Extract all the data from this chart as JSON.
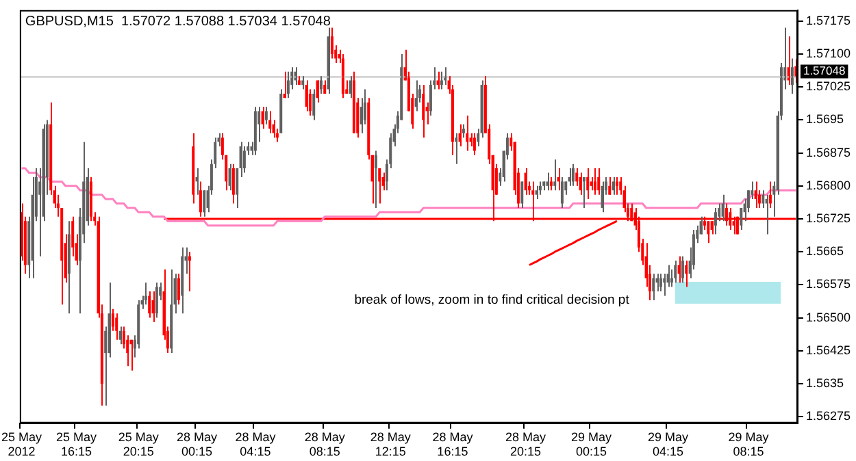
{
  "chart_data": {
    "type": "candlestick",
    "title": "GBPUSD,M15  1.57072 1.57088 1.57034 1.57048",
    "annotations": [
      "break of lows, zoom in to find critical decision pt"
    ],
    "categories": [
      "25 May 2012",
      null,
      null,
      null,
      null,
      null,
      null,
      null,
      null,
      null,
      null,
      null,
      null,
      null,
      null,
      "25 May 16:15",
      null,
      null,
      null,
      null,
      null,
      null,
      null,
      null,
      null,
      null,
      null,
      null,
      null,
      null,
      null,
      null,
      "25 May 20:15",
      null,
      null,
      null,
      null,
      null,
      null,
      null,
      null,
      null,
      null,
      null,
      null,
      null,
      null,
      null,
      "28 May 00:15",
      null,
      null,
      null,
      null,
      null,
      null,
      null,
      null,
      null,
      null,
      null,
      null,
      null,
      null,
      null,
      "28 May 04:15",
      null,
      null,
      null,
      null,
      null,
      null,
      null,
      null,
      null,
      null,
      null,
      null,
      null,
      null,
      null,
      null,
      null,
      null,
      "28 May 08:15",
      null,
      null,
      null,
      null,
      null,
      null,
      null,
      null,
      null,
      null,
      null,
      null,
      null,
      null,
      null,
      null,
      null,
      "28 May 12:15",
      null,
      null,
      null,
      null,
      null,
      null,
      null,
      null,
      null,
      null,
      null,
      null,
      null,
      null,
      null,
      null,
      "28 May 16:15",
      null,
      null,
      null,
      null,
      null,
      null,
      null,
      null,
      null,
      null,
      null,
      null,
      null,
      null,
      null,
      null,
      null,
      null,
      null,
      "28 May 20:15",
      null,
      null,
      null,
      null,
      null,
      null,
      null,
      null,
      null,
      null,
      null,
      null,
      null,
      null,
      null,
      null,
      null,
      "29 May 00:15",
      null,
      null,
      null,
      null,
      null,
      null,
      null,
      null,
      null,
      null,
      null,
      null,
      null,
      null,
      null,
      null,
      null,
      null,
      null,
      null,
      "29 May 04:15",
      null,
      null,
      null,
      null,
      null,
      null,
      null,
      null,
      null,
      null,
      null,
      null,
      null,
      null,
      null,
      null,
      null,
      null,
      null,
      null,
      null,
      "29 May 08:15",
      null,
      null,
      null,
      null,
      null,
      null,
      null,
      null,
      null,
      null,
      null,
      null,
      null
    ],
    "ohlc": [
      [
        1.5674,
        1.5676,
        1.5663,
        1.5664
      ],
      [
        1.5672,
        1.5673,
        1.566,
        1.5662
      ],
      [
        1.5662,
        1.5673,
        1.5659,
        1.5672
      ],
      [
        1.5663,
        1.5682,
        1.5659,
        1.5678
      ],
      [
        1.5673,
        1.5684,
        1.5672,
        1.5682
      ],
      [
        1.5678,
        1.5684,
        1.5664,
        1.5681
      ],
      [
        1.5673,
        1.5694,
        1.5672,
        1.5693
      ],
      [
        1.5682,
        1.5695,
        1.5678,
        1.5694
      ],
      [
        1.5694,
        1.5699,
        1.5678,
        1.5679
      ],
      [
        1.5679,
        1.568,
        1.5675,
        1.5676
      ],
      [
        1.5676,
        1.5678,
        1.5673,
        1.5675
      ],
      [
        1.5675,
        1.5675,
        1.5653,
        1.5663
      ],
      [
        1.5667,
        1.5669,
        1.5658,
        1.5659
      ],
      [
        1.566,
        1.5672,
        1.5651,
        1.5669
      ],
      [
        1.5672,
        1.5673,
        1.5664,
        1.5666
      ],
      [
        1.5667,
        1.5669,
        1.5662,
        1.5663
      ],
      [
        1.5663,
        1.5675,
        1.5651,
        1.5673
      ],
      [
        1.5669,
        1.569,
        1.5667,
        1.5681
      ],
      [
        1.5672,
        1.5684,
        1.5671,
        1.5682
      ],
      [
        1.5681,
        1.5682,
        1.5672,
        1.5673
      ],
      [
        1.5673,
        1.5674,
        1.5671,
        1.5672
      ],
      [
        1.5672,
        1.5673,
        1.565,
        1.5651
      ],
      [
        1.5651,
        1.5653,
        1.563,
        1.5635
      ],
      [
        1.5642,
        1.5648,
        1.563,
        1.5647
      ],
      [
        1.5642,
        1.5658,
        1.5641,
        1.5651
      ],
      [
        1.5651,
        1.5652,
        1.5647,
        1.5648
      ],
      [
        1.565,
        1.5651,
        1.5645,
        1.5647
      ],
      [
        1.5645,
        1.5648,
        1.5644,
        1.5647
      ],
      [
        1.5647,
        1.5648,
        1.5643,
        1.5644
      ],
      [
        1.5645,
        1.5646,
        1.5639,
        1.5642
      ],
      [
        1.5645,
        1.5645,
        1.5638,
        1.5644
      ],
      [
        1.5643,
        1.5646,
        1.5641,
        1.5645
      ],
      [
        1.5644,
        1.5654,
        1.5643,
        1.5653
      ],
      [
        1.5653,
        1.5655,
        1.5652,
        1.5654
      ],
      [
        1.5654,
        1.5658,
        1.5653,
        1.5655
      ],
      [
        1.5655,
        1.5656,
        1.565,
        1.5651
      ],
      [
        1.5654,
        1.5656,
        1.5649,
        1.5651
      ],
      [
        1.5651,
        1.5658,
        1.565,
        1.5657
      ],
      [
        1.5655,
        1.5658,
        1.5654,
        1.5657
      ],
      [
        1.5656,
        1.5661,
        1.5645,
        1.5646
      ],
      [
        1.5647,
        1.5648,
        1.5642,
        1.5643
      ],
      [
        1.5643,
        1.5661,
        1.5642,
        1.5653
      ],
      [
        1.5653,
        1.566,
        1.5651,
        1.5659
      ],
      [
        1.5659,
        1.566,
        1.5653,
        1.5654
      ],
      [
        1.5655,
        1.5666,
        1.5651,
        1.5664
      ],
      [
        1.5663,
        1.5666,
        1.566,
        1.5664
      ],
      [
        1.5664,
        1.5665,
        1.5656,
        1.5663
      ],
      [
        1.5689,
        1.5692,
        1.5676,
        1.5678
      ],
      [
        1.5681,
        1.5684,
        1.5678,
        1.5682
      ],
      [
        1.5679,
        1.5681,
        1.5673,
        1.5674
      ],
      [
        1.5674,
        1.5679,
        1.5673,
        1.5679
      ],
      [
        1.5675,
        1.568,
        1.5674,
        1.5679
      ],
      [
        1.5679,
        1.5686,
        1.5678,
        1.5685
      ],
      [
        1.5685,
        1.5691,
        1.5684,
        1.569
      ],
      [
        1.569,
        1.5692,
        1.5689,
        1.5691
      ],
      [
        1.5691,
        1.5692,
        1.5686,
        1.5687
      ],
      [
        1.5687,
        1.5687,
        1.5679,
        1.5681
      ],
      [
        1.568,
        1.5685,
        1.5679,
        1.5684
      ],
      [
        1.5684,
        1.5685,
        1.5676,
        1.5678
      ],
      [
        1.5678,
        1.5684,
        1.5675,
        1.5684
      ],
      [
        1.5684,
        1.569,
        1.5682,
        1.5689
      ],
      [
        1.5684,
        1.5689,
        1.5683,
        1.5688
      ],
      [
        1.5688,
        1.569,
        1.5687,
        1.5689
      ],
      [
        1.5688,
        1.569,
        1.5687,
        1.5689
      ],
      [
        1.5688,
        1.5698,
        1.5687,
        1.5697
      ],
      [
        1.5694,
        1.5698,
        1.569,
        1.5697
      ],
      [
        1.5697,
        1.5698,
        1.5693,
        1.5694
      ],
      [
        1.5695,
        1.5698,
        1.5694,
        1.5697
      ],
      [
        1.5695,
        1.5697,
        1.5692,
        1.5693
      ],
      [
        1.5694,
        1.5695,
        1.5691,
        1.5692
      ],
      [
        1.5692,
        1.5693,
        1.569,
        1.5691
      ],
      [
        1.5692,
        1.5702,
        1.5692,
        1.5701
      ],
      [
        1.5701,
        1.5706,
        1.57,
        1.57
      ],
      [
        1.5701,
        1.5706,
        1.57,
        1.5704
      ],
      [
        1.5703,
        1.5707,
        1.5702,
        1.5706
      ],
      [
        1.5704,
        1.5707,
        1.5703,
        1.5706
      ],
      [
        1.5704,
        1.5705,
        1.5703,
        1.5703
      ],
      [
        1.5703,
        1.5705,
        1.5702,
        1.5704
      ],
      [
        1.5703,
        1.5704,
        1.5697,
        1.5698
      ],
      [
        1.5701,
        1.5702,
        1.5696,
        1.5697
      ],
      [
        1.5696,
        1.5702,
        1.5695,
        1.5701
      ],
      [
        1.5704,
        1.5704,
        1.5699,
        1.57
      ],
      [
        1.5702,
        1.5705,
        1.5701,
        1.5704
      ],
      [
        1.5703,
        1.5704,
        1.5701,
        1.5701
      ],
      [
        1.5702,
        1.5716,
        1.5701,
        1.5714
      ],
      [
        1.5714,
        1.5716,
        1.5709,
        1.571
      ],
      [
        1.5711,
        1.5712,
        1.5708,
        1.5709
      ],
      [
        1.571,
        1.5711,
        1.5708,
        1.5709
      ],
      [
        1.5709,
        1.571,
        1.57,
        1.5701
      ],
      [
        1.5702,
        1.5704,
        1.5701,
        1.5701
      ],
      [
        1.5701,
        1.5705,
        1.57,
        1.5704
      ],
      [
        1.5704,
        1.5706,
        1.5692,
        1.5692
      ],
      [
        1.5699,
        1.57,
        1.5691,
        1.5692
      ],
      [
        1.5694,
        1.57,
        1.5692,
        1.5698
      ],
      [
        1.5695,
        1.5702,
        1.5694,
        1.5699
      ],
      [
        1.5699,
        1.57,
        1.5686,
        1.5687
      ],
      [
        1.5687,
        1.5687,
        1.5676,
        1.5681
      ],
      [
        1.5684,
        1.5688,
        1.5675,
        1.5687
      ],
      [
        1.5684,
        1.5684,
        1.5676,
        1.5681
      ],
      [
        1.5682,
        1.5683,
        1.5679,
        1.568
      ],
      [
        1.5681,
        1.5686,
        1.5679,
        1.5685
      ],
      [
        1.5685,
        1.5692,
        1.5684,
        1.5691
      ],
      [
        1.569,
        1.5694,
        1.5689,
        1.5693
      ],
      [
        1.5693,
        1.5697,
        1.5692,
        1.5696
      ],
      [
        1.5695,
        1.571,
        1.5695,
        1.5707
      ],
      [
        1.5707,
        1.5711,
        1.5704,
        1.5704
      ],
      [
        1.5705,
        1.5706,
        1.5697,
        1.5697
      ],
      [
        1.57,
        1.5701,
        1.5693,
        1.5694
      ],
      [
        1.5698,
        1.5704,
        1.5697,
        1.57
      ],
      [
        1.57,
        1.5703,
        1.5699,
        1.5702
      ],
      [
        1.5701,
        1.5703,
        1.5691,
        1.5695
      ],
      [
        1.5698,
        1.5699,
        1.5694,
        1.5697
      ],
      [
        1.5697,
        1.5704,
        1.5696,
        1.5703
      ],
      [
        1.5703,
        1.5707,
        1.5702,
        1.5704
      ],
      [
        1.5704,
        1.5706,
        1.5702,
        1.5703
      ],
      [
        1.5703,
        1.5706,
        1.5702,
        1.5704
      ],
      [
        1.5704,
        1.5707,
        1.5703,
        1.5705
      ],
      [
        1.5704,
        1.5705,
        1.5701,
        1.5702
      ],
      [
        1.5702,
        1.5703,
        1.5687,
        1.569
      ],
      [
        1.569,
        1.5692,
        1.5685,
        1.5691
      ],
      [
        1.5692,
        1.5694,
        1.5689,
        1.569
      ],
      [
        1.5692,
        1.5694,
        1.5691,
        1.5693
      ],
      [
        1.5692,
        1.5696,
        1.5688,
        1.569
      ],
      [
        1.5691,
        1.5692,
        1.5689,
        1.569
      ],
      [
        1.5691,
        1.5692,
        1.5687,
        1.5688
      ],
      [
        1.569,
        1.5693,
        1.5689,
        1.5692
      ],
      [
        1.5692,
        1.5704,
        1.5691,
        1.5703
      ],
      [
        1.5703,
        1.5705,
        1.5692,
        1.5692
      ],
      [
        1.5693,
        1.5694,
        1.5685,
        1.5686
      ],
      [
        1.5687,
        1.5687,
        1.5672,
        1.5679
      ],
      [
        1.5684,
        1.5685,
        1.5678,
        1.5678
      ],
      [
        1.5681,
        1.5684,
        1.568,
        1.5683
      ],
      [
        1.5682,
        1.5688,
        1.5681,
        1.5688
      ],
      [
        1.5687,
        1.5692,
        1.5686,
        1.5691
      ],
      [
        1.5691,
        1.5692,
        1.5688,
        1.5689
      ],
      [
        1.569,
        1.569,
        1.5678,
        1.5679
      ],
      [
        1.5683,
        1.5684,
        1.5675,
        1.5676
      ],
      [
        1.5676,
        1.5681,
        1.5675,
        1.5681
      ],
      [
        1.5683,
        1.5684,
        1.5678,
        1.5679
      ],
      [
        1.568,
        1.5681,
        1.5678,
        1.5679
      ],
      [
        1.5679,
        1.5681,
        1.5672,
        1.5678
      ],
      [
        1.5678,
        1.568,
        1.5677,
        1.5679
      ],
      [
        1.5679,
        1.5681,
        1.5678,
        1.568
      ],
      [
        1.568,
        1.5681,
        1.5679,
        1.5681
      ],
      [
        1.568,
        1.5683,
        1.5679,
        1.5681
      ],
      [
        1.5681,
        1.5682,
        1.5679,
        1.568
      ],
      [
        1.568,
        1.5686,
        1.5679,
        1.5681
      ],
      [
        1.5682,
        1.5684,
        1.5679,
        1.5681
      ],
      [
        1.5676,
        1.5682,
        1.5675,
        1.5681
      ],
      [
        1.5679,
        1.5681,
        1.5678,
        1.5681
      ],
      [
        1.5681,
        1.5684,
        1.568,
        1.5682
      ],
      [
        1.5681,
        1.5685,
        1.568,
        1.5684
      ],
      [
        1.5683,
        1.5684,
        1.568,
        1.5681
      ],
      [
        1.5682,
        1.5683,
        1.5678,
        1.5679
      ],
      [
        1.5681,
        1.5682,
        1.5675,
        1.5682
      ],
      [
        1.5682,
        1.5684,
        1.5677,
        1.5679
      ],
      [
        1.5681,
        1.5682,
        1.5679,
        1.568
      ],
      [
        1.5681,
        1.5684,
        1.5678,
        1.5679
      ],
      [
        1.5682,
        1.5684,
        1.5678,
        1.5679
      ],
      [
        1.5675,
        1.5681,
        1.5674,
        1.568
      ],
      [
        1.5679,
        1.5682,
        1.5678,
        1.5681
      ],
      [
        1.568,
        1.5682,
        1.5678,
        1.5678
      ],
      [
        1.5679,
        1.5682,
        1.5678,
        1.5681
      ],
      [
        1.5681,
        1.5682,
        1.5678,
        1.568
      ],
      [
        1.5681,
        1.5682,
        1.5678,
        1.5679
      ],
      [
        1.5679,
        1.568,
        1.5674,
        1.5675
      ],
      [
        1.5675,
        1.5676,
        1.5672,
        1.5673
      ],
      [
        1.5675,
        1.5676,
        1.5672,
        1.5672
      ],
      [
        1.5674,
        1.5675,
        1.567,
        1.5671
      ],
      [
        1.5672,
        1.5673,
        1.5665,
        1.5666
      ],
      [
        1.5667,
        1.5668,
        1.5662,
        1.5663
      ],
      [
        1.5664,
        1.5667,
        1.5657,
        1.5659
      ],
      [
        1.566,
        1.5662,
        1.5654,
        1.5656
      ],
      [
        1.5656,
        1.566,
        1.5654,
        1.5659
      ],
      [
        1.5658,
        1.566,
        1.5656,
        1.5659
      ],
      [
        1.5657,
        1.566,
        1.5656,
        1.5659
      ],
      [
        1.5658,
        1.566,
        1.5655,
        1.5659
      ],
      [
        1.5658,
        1.5662,
        1.5657,
        1.566
      ],
      [
        1.5658,
        1.5661,
        1.5657,
        1.5659
      ],
      [
        1.5659,
        1.5663,
        1.5658,
        1.5662
      ],
      [
        1.5662,
        1.5664,
        1.5658,
        1.566
      ],
      [
        1.5659,
        1.5664,
        1.5658,
        1.5663
      ],
      [
        1.5662,
        1.5663,
        1.5657,
        1.566
      ],
      [
        1.566,
        1.5666,
        1.5659,
        1.5663
      ],
      [
        1.5662,
        1.567,
        1.5661,
        1.5669
      ],
      [
        1.5668,
        1.5671,
        1.5667,
        1.567
      ],
      [
        1.5669,
        1.5673,
        1.5669,
        1.5672
      ],
      [
        1.5672,
        1.5673,
        1.567,
        1.5671
      ],
      [
        1.5672,
        1.5672,
        1.5667,
        1.5669
      ],
      [
        1.5672,
        1.5672,
        1.5669,
        1.567
      ],
      [
        1.5671,
        1.5675,
        1.5669,
        1.5674
      ],
      [
        1.5673,
        1.5676,
        1.5672,
        1.5675
      ],
      [
        1.5673,
        1.5678,
        1.5672,
        1.5676
      ],
      [
        1.5675,
        1.5676,
        1.5671,
        1.5672
      ],
      [
        1.5674,
        1.5675,
        1.567,
        1.5671
      ],
      [
        1.5672,
        1.5673,
        1.5669,
        1.5671
      ],
      [
        1.5673,
        1.5673,
        1.5669,
        1.5669
      ],
      [
        1.5671,
        1.5675,
        1.567,
        1.5675
      ],
      [
        1.5674,
        1.5677,
        1.5672,
        1.5676
      ],
      [
        1.5675,
        1.5679,
        1.5674,
        1.5679
      ],
      [
        1.5678,
        1.5681,
        1.5677,
        1.5679
      ],
      [
        1.5679,
        1.5681,
        1.5675,
        1.5677
      ],
      [
        1.5678,
        1.5679,
        1.5675,
        1.5676
      ],
      [
        1.5676,
        1.5679,
        1.5675,
        1.5678
      ],
      [
        1.5676,
        1.5678,
        1.5669,
        1.5677
      ],
      [
        1.5678,
        1.5681,
        1.5675,
        1.5676
      ],
      [
        1.5678,
        1.5681,
        1.5673,
        1.568
      ],
      [
        1.5679,
        1.5697,
        1.5678,
        1.5696
      ],
      [
        1.5696,
        1.5708,
        1.5695,
        1.5707
      ],
      [
        1.5704,
        1.5716,
        1.5702,
        1.5707
      ],
      [
        1.5707,
        1.5714,
        1.5703,
        1.5704
      ],
      [
        1.5703,
        1.5709,
        1.5701,
        1.5707
      ],
      [
        1.57072,
        1.57088,
        1.57034,
        1.57048
      ]
    ],
    "colors": [
      "#ff0000",
      "#ff0000",
      "#606060",
      "#606060",
      "#606060",
      "#606060",
      "#606060",
      "#606060",
      "#ff0000",
      "#ff0000",
      "#ff0000",
      "#ff0000",
      "#ff0000",
      "#606060",
      "#ff0000",
      "#ff0000",
      "#606060",
      "#606060",
      "#606060",
      "#ff0000",
      "#ff0000",
      "#ff0000",
      "#ff0000",
      "#606060",
      "#606060",
      "#ff0000",
      "#ff0000",
      "#606060",
      "#ff0000",
      "#ff0000",
      "#ff0000",
      "#606060",
      "#606060",
      "#606060",
      "#606060",
      "#ff0000",
      "#ff0000",
      "#606060",
      "#606060",
      "#ff0000",
      "#ff0000",
      "#606060",
      "#606060",
      "#ff0000",
      "#606060",
      "#606060",
      "#ff0000",
      "#ff0000",
      "#606060",
      "#ff0000",
      "#606060",
      "#606060",
      "#606060",
      "#606060",
      "#606060",
      "#ff0000",
      "#ff0000",
      "#606060",
      "#ff0000",
      "#606060",
      "#606060",
      "#606060",
      "#606060",
      "#606060",
      "#606060",
      "#606060",
      "#ff0000",
      "#606060",
      "#ff0000",
      "#ff0000",
      "#ff0000",
      "#606060",
      "#ff0000",
      "#606060",
      "#606060",
      "#606060",
      "#ff0000",
      "#606060",
      "#ff0000",
      "#ff0000",
      "#606060",
      "#ff0000",
      "#606060",
      "#ff0000",
      "#606060",
      "#ff0000",
      "#ff0000",
      "#ff0000",
      "#ff0000",
      "#ff0000",
      "#606060",
      "#ff0000",
      "#ff0000",
      "#606060",
      "#606060",
      "#ff0000",
      "#ff0000",
      "#606060",
      "#ff0000",
      "#ff0000",
      "#606060",
      "#606060",
      "#606060",
      "#606060",
      "#606060",
      "#ff0000",
      "#ff0000",
      "#ff0000",
      "#606060",
      "#606060",
      "#ff0000",
      "#ff0000",
      "#606060",
      "#606060",
      "#ff0000",
      "#606060",
      "#606060",
      "#ff0000",
      "#ff0000",
      "#606060",
      "#ff0000",
      "#606060",
      "#ff0000",
      "#ff0000",
      "#ff0000",
      "#606060",
      "#606060",
      "#ff0000",
      "#ff0000",
      "#ff0000",
      "#ff0000",
      "#606060",
      "#606060",
      "#606060",
      "#ff0000",
      "#ff0000",
      "#ff0000",
      "#606060",
      "#ff0000",
      "#ff0000",
      "#ff0000",
      "#606060",
      "#606060",
      "#606060",
      "#606060",
      "#ff0000",
      "#606060",
      "#ff0000",
      "#606060",
      "#606060",
      "#606060",
      "#606060",
      "#ff0000",
      "#ff0000",
      "#606060",
      "#ff0000",
      "#ff0000",
      "#ff0000",
      "#ff0000",
      "#606060",
      "#606060",
      "#ff0000",
      "#606060",
      "#ff0000",
      "#ff0000",
      "#ff0000",
      "#ff0000",
      "#ff0000",
      "#ff0000",
      "#ff0000",
      "#ff0000",
      "#ff0000",
      "#ff0000",
      "#606060",
      "#606060",
      "#606060",
      "#606060",
      "#606060",
      "#606060",
      "#606060",
      "#ff0000",
      "#606060",
      "#ff0000",
      "#606060",
      "#606060",
      "#606060",
      "#606060",
      "#ff0000",
      "#ff0000",
      "#ff0000",
      "#606060",
      "#606060",
      "#606060",
      "#ff0000",
      "#ff0000",
      "#ff0000",
      "#ff0000",
      "#606060",
      "#606060",
      "#606060",
      "#606060",
      "#ff0000",
      "#ff0000",
      "#606060",
      "#606060",
      "#ff0000",
      "#606060",
      "#606060",
      "#606060",
      "#606060",
      "#ff0000",
      "#606060",
      "#ff0000"
    ],
    "series": [
      {
        "type": "line",
        "color": "#ff80c0",
        "values": [
          1.5684,
          1.5684,
          1.5683,
          1.5683,
          1.5683,
          1.5682,
          1.5682,
          1.5682,
          1.5681,
          1.5681,
          1.5681,
          1.5681,
          1.568,
          1.568,
          1.568,
          1.568,
          1.5679,
          1.5679,
          1.5679,
          1.5678,
          1.5678,
          1.5678,
          1.5678,
          1.5677,
          1.5677,
          1.5677,
          1.5676,
          1.5676,
          1.5676,
          1.5675,
          1.5675,
          1.5675,
          1.5674,
          1.5674,
          1.5674,
          1.5674,
          1.5673,
          1.5673,
          1.5673,
          1.5673,
          1.5672,
          1.5672,
          1.5672,
          1.5672,
          1.5672,
          1.5672,
          1.5672,
          1.5672,
          1.5672,
          1.5672,
          1.5672,
          1.5671,
          1.5671,
          1.5671,
          1.5671,
          1.5671,
          1.5671,
          1.5671,
          1.5671,
          1.5671,
          1.5671,
          1.5671,
          1.5671,
          1.5671,
          1.5671,
          1.5671,
          1.5671,
          1.5671,
          1.5671,
          1.5671,
          1.5672,
          1.5672,
          1.5672,
          1.5672,
          1.5672,
          1.5672,
          1.5672,
          1.5672,
          1.5672,
          1.5672,
          1.5672,
          1.5672,
          1.5672,
          1.5673,
          1.5673,
          1.5673,
          1.5673,
          1.5673,
          1.5673,
          1.5673,
          1.5673,
          1.5673,
          1.5673,
          1.5673,
          1.5673,
          1.5673,
          1.5673,
          1.5673,
          1.5674,
          1.5674,
          1.5674,
          1.5674,
          1.5674,
          1.5674,
          1.5674,
          1.5674,
          1.5674,
          1.5674,
          1.5674,
          1.5674,
          1.5675,
          1.5675,
          1.5675,
          1.5675,
          1.5675,
          1.5675,
          1.5675,
          1.5675,
          1.5675,
          1.5675,
          1.5675,
          1.5675,
          1.5675,
          1.5675,
          1.5675,
          1.5675,
          1.5675,
          1.5675,
          1.5675,
          1.5675,
          1.5675,
          1.5675,
          1.5675,
          1.5675,
          1.5675,
          1.5675,
          1.5675,
          1.5675,
          1.5675,
          1.5675,
          1.5675,
          1.5675,
          1.5675,
          1.5675,
          1.5675,
          1.5675,
          1.5675,
          1.5675,
          1.5675,
          1.5675,
          1.5675,
          1.5676,
          1.5676,
          1.5676,
          1.5676,
          1.5676,
          1.5676,
          1.5676,
          1.5676,
          1.5676,
          1.5676,
          1.5676,
          1.5676,
          1.5676,
          1.5676,
          1.5676,
          1.5676,
          1.5676,
          1.5676,
          1.5676,
          1.5676,
          1.5675,
          1.5675,
          1.5675,
          1.5675,
          1.5675,
          1.5675,
          1.5675,
          1.5675,
          1.5675,
          1.5675,
          1.5675,
          1.5675,
          1.5675,
          1.5675,
          1.5675,
          1.5676,
          1.5676,
          1.5676,
          1.5676,
          1.5676,
          1.5676,
          1.5676,
          1.5676,
          1.5676,
          1.5676,
          1.5676,
          1.5676,
          1.5677,
          1.5677,
          1.5678,
          1.5678,
          1.5678,
          1.5678,
          1.5678,
          1.5679,
          1.5679,
          1.5679,
          1.5679,
          1.5679,
          1.5679,
          1.5679,
          1.5679
        ]
      },
      {
        "type": "line",
        "color": "#ff0000",
        "values": [
          null,
          null,
          null,
          null,
          null,
          null,
          null,
          null,
          null,
          null,
          null,
          null,
          null,
          null,
          null,
          null,
          null,
          null,
          null,
          null,
          null,
          null,
          null,
          null,
          null,
          null,
          null,
          null,
          null,
          null,
          null,
          null,
          null,
          null,
          null,
          null,
          null,
          null,
          null,
          1.56725,
          1.56725,
          1.56725,
          1.56725,
          1.56725,
          1.56725,
          1.56725,
          1.56725,
          1.56725,
          1.56725,
          1.56725,
          1.56725,
          1.56725,
          1.56725,
          1.56725,
          1.56725,
          1.56725,
          1.56725,
          1.56725,
          1.56725,
          1.56725,
          1.56725,
          1.56725,
          1.56725,
          1.56725,
          1.56725,
          1.56725,
          1.56725,
          1.56725,
          1.56725,
          1.56725,
          1.56725,
          1.56725,
          1.56725,
          1.56725,
          1.56725,
          1.56725,
          1.56725,
          1.56725,
          1.56725,
          1.56725,
          1.56725,
          1.56725,
          1.56725,
          1.56725,
          1.56725,
          1.56725,
          1.56725,
          1.56725,
          1.56725,
          1.56725,
          1.56725,
          1.56725,
          1.56725,
          1.56725,
          1.56725,
          1.56725,
          1.56725,
          1.56725,
          1.56725,
          1.56725,
          1.56725,
          1.56725,
          1.56725,
          1.56725,
          1.56725,
          1.56725,
          1.56725,
          1.56725,
          1.56725,
          1.56725,
          1.56725,
          1.56725,
          1.56725,
          1.56725,
          1.56725,
          1.56725,
          1.56725,
          1.56725,
          1.56725,
          1.56725,
          1.56725,
          1.56725,
          1.56725,
          1.56725,
          1.56725,
          1.56725,
          1.56725,
          1.56725,
          1.56725,
          1.56725,
          1.56725,
          1.56725,
          1.56725,
          1.56725,
          1.56725,
          1.56725,
          1.56725,
          1.56725,
          1.56725,
          1.56725,
          1.56725,
          1.56725,
          1.56725,
          1.56725,
          1.56725,
          1.56725,
          1.56725,
          1.56725,
          1.56725,
          1.56725,
          1.56725,
          1.56725,
          1.56725,
          1.56725,
          1.56725,
          1.56725,
          1.56725,
          1.56725,
          1.56725,
          1.56725,
          1.56725,
          1.56725,
          1.56725,
          1.56725,
          1.56725,
          1.56725,
          1.56725,
          1.56725,
          1.56725,
          1.56725,
          1.56725,
          1.56725,
          1.56725,
          1.56725,
          1.56725,
          1.56725,
          1.56725,
          1.56725,
          1.56725,
          1.56725,
          1.56725,
          1.56725,
          1.56725,
          1.56725,
          1.56725,
          1.56725,
          1.56725,
          1.56725,
          1.56725,
          1.56725,
          1.56725,
          1.56725,
          1.56725,
          1.56725,
          1.56725,
          1.56725,
          1.56725,
          1.56725,
          1.56725,
          1.56725,
          1.56725,
          1.56725,
          1.56725,
          1.56725,
          1.56725,
          1.56725,
          1.56725,
          1.56725,
          1.56725,
          1.56725,
          1.56725,
          1.56725,
          1.56725
        ]
      },
      {
        "type": "line",
        "color": "#ff0000",
        "values": [
          null,
          null,
          null,
          null,
          null,
          null,
          null,
          null,
          null,
          null,
          null,
          null,
          null,
          null,
          null,
          null,
          null,
          null,
          null,
          null,
          null,
          null,
          null,
          null,
          null,
          null,
          null,
          null,
          null,
          null,
          null,
          null,
          null,
          null,
          null,
          null,
          null,
          null,
          null,
          null,
          null,
          null,
          null,
          null,
          null,
          null,
          null,
          null,
          null,
          null,
          null,
          null,
          null,
          null,
          null,
          null,
          null,
          null,
          null,
          null,
          null,
          null,
          null,
          null,
          null,
          null,
          null,
          null,
          null,
          null,
          null,
          null,
          null,
          null,
          null,
          null,
          null,
          null,
          null,
          null,
          null,
          null,
          null,
          null,
          null,
          null,
          null,
          null,
          null,
          null,
          null,
          null,
          null,
          null,
          null,
          null,
          null,
          null,
          null,
          null,
          null,
          null,
          null,
          null,
          null,
          null,
          null,
          null,
          null,
          null,
          null,
          null,
          null,
          null,
          null,
          null,
          null,
          null,
          null,
          null,
          null,
          null,
          null,
          null,
          null,
          null,
          null,
          null,
          null,
          null,
          null,
          null,
          null,
          null,
          null,
          null,
          null,
          null,
          null,
          1.5662,
          1.56624,
          1.56628,
          1.56633,
          1.56637,
          1.56641,
          1.56645,
          1.5665,
          1.56654,
          1.56658,
          1.56662,
          1.56666,
          1.5667,
          1.56675,
          1.56679,
          1.56683,
          1.56687,
          1.56691,
          1.56695,
          1.567,
          1.56704,
          1.56708,
          1.56712,
          1.56716,
          1.5672,
          null,
          null,
          null,
          null,
          null,
          null,
          null,
          null,
          null,
          null,
          null,
          null,
          null,
          null,
          null,
          null,
          null,
          null,
          null,
          null,
          null,
          null,
          null,
          null,
          null,
          null,
          null,
          null,
          null,
          null,
          null,
          null,
          null,
          null,
          null,
          null,
          null,
          null,
          null,
          null,
          null,
          null,
          null,
          null,
          null,
          null,
          null,
          null,
          null
        ]
      }
    ],
    "ref_lines": [
      {
        "axis": "y",
        "value": 1.57048,
        "label": "1.57048",
        "color": "#c0c0c0"
      }
    ],
    "ylim": [
      1.5626,
      1.572
    ],
    "yticks": [
      1.56275,
      1.5635,
      1.56425,
      {
        "value": 1.565,
        "label": "1.56500"
      },
      1.56575,
      1.5665,
      1.56725,
      {
        "value": 1.568,
        "label": "1.56800"
      },
      1.56875,
      1.5695,
      1.57025,
      {
        "value": 1.571,
        "label": "1.57100"
      },
      1.57175
    ],
    "grid": false,
    "legend": false,
    "marker": "none"
  }
}
